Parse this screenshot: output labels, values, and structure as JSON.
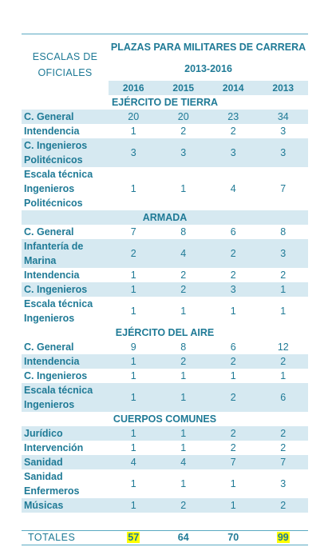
{
  "header": {
    "left_title": "ESCALAS DE OFICIALES",
    "title_line1": "PLAZAS PARA MILITARES DE CARRERA",
    "title_line2": "2013-2016",
    "years": [
      "2016",
      "2015",
      "2014",
      "2013"
    ]
  },
  "sections": [
    {
      "name": "EJÉRCITO DE TIERRA",
      "rows": [
        {
          "label": "C. General",
          "values": [
            "20",
            "20",
            "23",
            "34"
          ],
          "lines": 1,
          "shaded": true
        },
        {
          "label": "Intendencia",
          "values": [
            "1",
            "2",
            "2",
            "3"
          ],
          "lines": 1,
          "shaded": false
        },
        {
          "label": "C. Ingenieros Politécnicos",
          "values": [
            "3",
            "3",
            "3",
            "3"
          ],
          "lines": 2,
          "shaded": true
        },
        {
          "label": "Escala técnica Ingenieros Politécnicos",
          "values": [
            "1",
            "1",
            "4",
            "7"
          ],
          "lines": 3,
          "shaded": false
        }
      ]
    },
    {
      "name": "ARMADA",
      "rows": [
        {
          "label": "C. General",
          "values": [
            "7",
            "8",
            "6",
            "8"
          ],
          "lines": 1,
          "shaded": false
        },
        {
          "label": "Infantería de Marina",
          "values": [
            "2",
            "4",
            "2",
            "3"
          ],
          "lines": 2,
          "shaded": true
        },
        {
          "label": "Intendencia",
          "values": [
            "1",
            "2",
            "2",
            "2"
          ],
          "lines": 1,
          "shaded": false
        },
        {
          "label": "C. Ingenieros",
          "values": [
            "1",
            "2",
            "3",
            "1"
          ],
          "lines": 1,
          "shaded": true
        },
        {
          "label": "Escala técnica Ingenieros",
          "values": [
            "1",
            "1",
            "1",
            "1"
          ],
          "lines": 2,
          "shaded": false
        }
      ]
    },
    {
      "name": "EJÉRCITO DEL AIRE",
      "rows": [
        {
          "label": "C. General",
          "values": [
            "9",
            "8",
            "6",
            "12"
          ],
          "lines": 1,
          "shaded": false
        },
        {
          "label": "Intendencia",
          "values": [
            "1",
            "2",
            "2",
            "2"
          ],
          "lines": 1,
          "shaded": true
        },
        {
          "label": "C. Ingenieros",
          "values": [
            "1",
            "1",
            "1",
            "1"
          ],
          "lines": 1,
          "shaded": false
        },
        {
          "label": "Escala técnica Ingenieros",
          "values": [
            "1",
            "1",
            "2",
            "6"
          ],
          "lines": 2,
          "shaded": true
        }
      ]
    },
    {
      "name": "CUERPOS COMUNES",
      "rows": [
        {
          "label": "Jurídico",
          "values": [
            "1",
            "1",
            "2",
            "2"
          ],
          "lines": 1,
          "shaded": true
        },
        {
          "label": "Intervención",
          "values": [
            "1",
            "1",
            "2",
            "2"
          ],
          "lines": 1,
          "shaded": false
        },
        {
          "label": "Sanidad",
          "values": [
            "4",
            "4",
            "7",
            "7"
          ],
          "lines": 1,
          "shaded": true
        },
        {
          "label": "Sanidad Enfermeros",
          "values": [
            "1",
            "1",
            "1",
            "3"
          ],
          "lines": 2,
          "shaded": false
        },
        {
          "label": "Músicas",
          "values": [
            "1",
            "2",
            "1",
            "2"
          ],
          "lines": 1,
          "shaded": true
        }
      ]
    }
  ],
  "sections_shaded": [
    false,
    true,
    false,
    false
  ],
  "totals": {
    "label": "TOTALES",
    "values": [
      "57",
      "64",
      "70",
      "99"
    ],
    "highlighted": [
      true,
      false,
      false,
      true
    ],
    "highlight_color": "#ffff00"
  },
  "colors": {
    "text": "#1f7a96",
    "row_fill": "#d6e9f1",
    "rule": "#5aa9c2"
  }
}
